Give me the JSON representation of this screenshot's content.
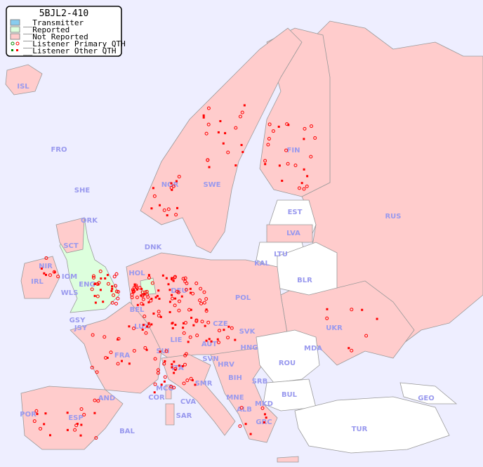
{
  "title": "5BJL2-410",
  "legend": [
    {
      "label": "__Transmitter",
      "color": "#88ccee"
    },
    {
      "label": "__Reported",
      "color": "#ddffdd"
    },
    {
      "label": "__Not Reported",
      "color": "#ffcccc"
    },
    {
      "label": "__Listener Primary QTH",
      "symbol": "open-circle"
    },
    {
      "label": "__Listener Other QTH",
      "symbol": "filled-square"
    }
  ],
  "colors": {
    "sea": "#eeeeff",
    "not_reported": "#ffcccc",
    "reported": "#ddffdd",
    "no_data": "#ffffff",
    "marker": "#ff0000",
    "marker_reported": "#008800",
    "label": "#9999ee"
  },
  "countries": [
    "ISL",
    "FRO",
    "SHE",
    "ORK",
    "NOR",
    "SWE",
    "FIN",
    "EST",
    "RUS",
    "LVA",
    "LTU",
    "DNK",
    "KAL",
    "BLR",
    "HOL",
    "IRL",
    "NIR",
    "SCT",
    "IOM",
    "WLS",
    "ENG",
    "GSY",
    "JSY",
    "BEL",
    "LUX",
    "DEU",
    "POL",
    "CZE",
    "SVK",
    "UKR",
    "MDA",
    "HNG",
    "AUT",
    "LIE",
    "SUI",
    "FRA",
    "SVN",
    "HRV",
    "ROU",
    "ITA",
    "BIH",
    "SRB",
    "SMR",
    "MCO",
    "COR",
    "AND",
    "MNE",
    "BUL",
    "GEO",
    "ALB",
    "MKD",
    "CVA",
    "SAR",
    "POR",
    "ESP",
    "BAL",
    "GRC",
    "TUR"
  ]
}
